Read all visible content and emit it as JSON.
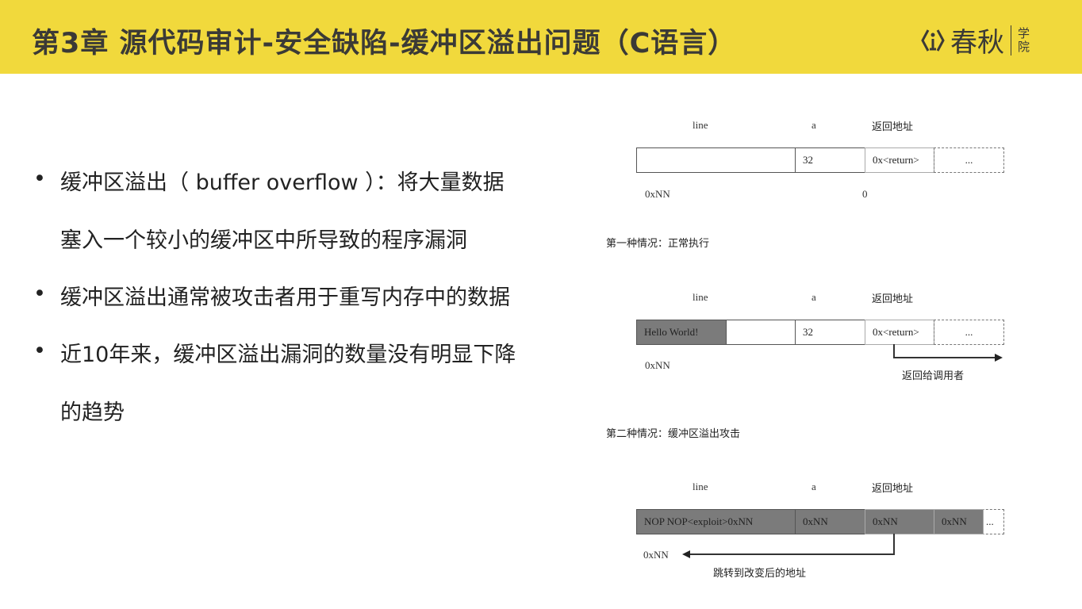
{
  "header": {
    "title": "第3章  源代码审计-安全缺陷-缓冲区溢出问题（C语言）",
    "logo_main": "春秋",
    "logo_sub": "学院",
    "accent": "#f1d93c"
  },
  "bullets": [
    {
      "lines": [
        "缓冲区溢出（ buffer overflow ）：将大量数据",
        "塞入一个较小的缓冲区中所导致的程序漏洞"
      ]
    },
    {
      "lines": [
        "缓冲区溢出通常被攻击者用于重写内存中的数据"
      ]
    },
    {
      "lines": [
        "近10年来，缓冲区溢出漏洞的数量没有明显下降",
        "的趋势"
      ]
    }
  ],
  "diagram": {
    "col_labels": [
      "line",
      "a",
      "返回地址"
    ],
    "d1": {
      "cells": [
        "",
        "32",
        "0x<return>",
        "..."
      ],
      "addr_left": "0xNN",
      "addr_mid": "0",
      "caption": "第一种情况：正常执行"
    },
    "d2": {
      "cells": [
        "Hello World!",
        "",
        "32",
        "0x<return>",
        "..."
      ],
      "addr_left": "0xNN",
      "arrow_label": "返回给调用者",
      "caption": "第二种情况：缓冲区溢出攻击"
    },
    "d3": {
      "cells": [
        "NOP NOP<exploit>0xNN",
        "0xNN",
        "0xNN",
        "0xNN",
        "..."
      ],
      "addr_left": "0xNN",
      "arrow_label": "跳转到改变后的地址"
    }
  }
}
